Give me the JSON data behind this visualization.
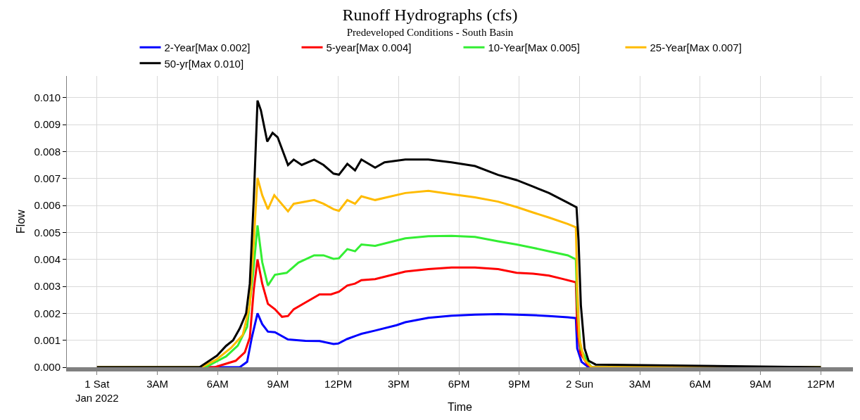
{
  "chart_data": {
    "type": "line",
    "title": "Runoff Hydrographs (cfs)",
    "subtitle": "Predeveloped Conditions - South Basin",
    "xlabel": "Time",
    "ylabel": "Flow",
    "xlim": [
      "2021-12-31T22:30",
      "2022-01-02T13:36"
    ],
    "ylim": [
      0,
      0.0108
    ],
    "xticks": [
      {
        "value": "2022-01-01T00:00",
        "label": "1 Sat\nJan 2022"
      },
      {
        "value": "2022-01-01T03:00",
        "label": "3AM"
      },
      {
        "value": "2022-01-01T06:00",
        "label": "6AM"
      },
      {
        "value": "2022-01-01T09:00",
        "label": "9AM"
      },
      {
        "value": "2022-01-01T12:00",
        "label": "12PM"
      },
      {
        "value": "2022-01-01T15:00",
        "label": "3PM"
      },
      {
        "value": "2022-01-01T18:00",
        "label": "6PM"
      },
      {
        "value": "2022-01-01T21:00",
        "label": "9PM"
      },
      {
        "value": "2022-01-02T00:00",
        "label": "2 Sun"
      },
      {
        "value": "2022-01-02T03:00",
        "label": "3AM"
      },
      {
        "value": "2022-01-02T06:00",
        "label": "6AM"
      },
      {
        "value": "2022-01-02T09:00",
        "label": "9AM"
      },
      {
        "value": "2022-01-02T12:00",
        "label": "12PM"
      }
    ],
    "yticks": [
      {
        "value": 0,
        "label": "0.000"
      },
      {
        "value": 0.001,
        "label": "0.001"
      },
      {
        "value": 0.002,
        "label": "0.002"
      },
      {
        "value": 0.003,
        "label": "0.003"
      },
      {
        "value": 0.004,
        "label": "0.004"
      },
      {
        "value": 0.005,
        "label": "0.005"
      },
      {
        "value": 0.006,
        "label": "0.006"
      },
      {
        "value": 0.007,
        "label": "0.007"
      },
      {
        "value": 0.008,
        "label": "0.008"
      },
      {
        "value": 0.009,
        "label": "0.009"
      },
      {
        "value": 0.01,
        "label": "0.010"
      }
    ],
    "grid": true,
    "legend": "top",
    "marker": "none",
    "line_style": "solid",
    "series": [
      {
        "name": "2-Year[Max 0.002]",
        "color": "#0000ff",
        "x": [
          "2022-01-01T00:00",
          "2022-01-01T07:06",
          "2022-01-01T07:28",
          "2022-01-01T07:42",
          "2022-01-01T07:59",
          "2022-01-01T08:13",
          "2022-01-01T08:30",
          "2022-01-01T08:51",
          "2022-01-01T09:30",
          "2022-01-01T10:22",
          "2022-01-01T11:04",
          "2022-01-01T11:46",
          "2022-01-01T12:00",
          "2022-01-01T12:27",
          "2022-01-01T13:09",
          "2022-01-01T13:50",
          "2022-01-01T14:54",
          "2022-01-01T15:20",
          "2022-01-01T16:29",
          "2022-01-01T17:38",
          "2022-01-01T18:48",
          "2022-01-01T19:57",
          "2022-01-01T20:52",
          "2022-01-01T21:41",
          "2022-01-01T22:29",
          "2022-01-01T23:25",
          "2022-01-01T23:49",
          "2022-01-01T23:53",
          "2022-01-02T00:06",
          "2022-01-02T00:27",
          "2022-01-02T12:00"
        ],
        "values": [
          0,
          0,
          0.0002,
          0.0011,
          0.002,
          0.0016,
          0.00132,
          0.0013,
          0.00103,
          0.00098,
          0.00097,
          0.00086,
          0.00088,
          0.00105,
          0.00124,
          0.00136,
          0.00156,
          0.00167,
          0.00183,
          0.00191,
          0.00195,
          0.00197,
          0.00195,
          0.00193,
          0.0019,
          0.00185,
          0.00182,
          0.0007,
          0.0002,
          0,
          0
        ]
      },
      {
        "name": "5-year[Max 0.004]",
        "color": "#ff0000",
        "x": [
          "2022-01-01T00:00",
          "2022-01-01T05:51",
          "2022-01-01T06:54",
          "2022-01-01T07:21",
          "2022-01-01T07:36",
          "2022-01-01T07:48",
          "2022-01-01T07:59",
          "2022-01-01T08:13",
          "2022-01-01T08:30",
          "2022-01-01T08:51",
          "2022-01-01T09:12",
          "2022-01-01T09:30",
          "2022-01-01T09:47",
          "2022-01-01T10:22",
          "2022-01-01T11:04",
          "2022-01-01T11:38",
          "2022-01-01T12:02",
          "2022-01-01T12:27",
          "2022-01-01T12:50",
          "2022-01-01T13:09",
          "2022-01-01T13:50",
          "2022-01-01T15:20",
          "2022-01-01T16:29",
          "2022-01-01T17:38",
          "2022-01-01T18:48",
          "2022-01-01T19:57",
          "2022-01-01T20:52",
          "2022-01-01T21:41",
          "2022-01-01T22:29",
          "2022-01-01T23:11",
          "2022-01-01T23:49",
          "2022-01-01T23:53",
          "2022-01-02T00:03",
          "2022-01-02T00:24",
          "2022-01-02T00:36",
          "2022-01-02T12:00"
        ],
        "values": [
          0,
          0,
          0.00024,
          0.00055,
          0.0011,
          0.0029,
          0.004,
          0.0031,
          0.00235,
          0.00215,
          0.00187,
          0.0019,
          0.00215,
          0.0024,
          0.0027,
          0.0027,
          0.0028,
          0.00303,
          0.0031,
          0.00323,
          0.00327,
          0.00355,
          0.00364,
          0.0037,
          0.0037,
          0.00364,
          0.0035,
          0.00347,
          0.0034,
          0.00327,
          0.00315,
          0.0015,
          0.0005,
          0.0001,
          0,
          0
        ]
      },
      {
        "name": "10-Year[Max 0.005]",
        "color": "#33ee33",
        "x": [
          "2022-01-01T00:00",
          "2022-01-01T05:24",
          "2022-01-01T06:25",
          "2022-01-01T07:00",
          "2022-01-01T07:28",
          "2022-01-01T07:46",
          "2022-01-01T07:59",
          "2022-01-01T08:13",
          "2022-01-01T08:30",
          "2022-01-01T08:51",
          "2022-01-01T09:26",
          "2022-01-01T10:01",
          "2022-01-01T10:48",
          "2022-01-01T11:16",
          "2022-01-01T11:46",
          "2022-01-01T12:02",
          "2022-01-01T12:27",
          "2022-01-01T12:50",
          "2022-01-01T13:09",
          "2022-01-01T13:50",
          "2022-01-01T15:20",
          "2022-01-01T16:29",
          "2022-01-01T17:38",
          "2022-01-01T18:48",
          "2022-01-01T19:57",
          "2022-01-01T20:52",
          "2022-01-01T21:41",
          "2022-01-01T22:29",
          "2022-01-01T23:25",
          "2022-01-01T23:49",
          "2022-01-01T23:53",
          "2022-01-02T00:03",
          "2022-01-02T00:24",
          "2022-01-02T00:36",
          "2022-01-02T12:00"
        ],
        "values": [
          0,
          0,
          0.0004,
          0.0008,
          0.0015,
          0.0035,
          0.00526,
          0.0039,
          0.00303,
          0.00343,
          0.0035,
          0.00388,
          0.00415,
          0.00415,
          0.00402,
          0.00404,
          0.00438,
          0.0043,
          0.00455,
          0.0045,
          0.00478,
          0.00486,
          0.00487,
          0.00483,
          0.00467,
          0.00455,
          0.00443,
          0.0043,
          0.00415,
          0.004,
          0.0023,
          0.0007,
          0.0002,
          0,
          0
        ]
      },
      {
        "name": "25-Year[Max 0.007]",
        "color": "#ffbb00",
        "x": [
          "2022-01-01T00:00",
          "2022-01-01T05:12",
          "2022-01-01T05:58",
          "2022-01-01T06:40",
          "2022-01-01T07:15",
          "2022-01-01T07:36",
          "2022-01-01T07:48",
          "2022-01-01T07:59",
          "2022-01-01T08:13",
          "2022-01-01T08:30",
          "2022-01-01T08:49",
          "2022-01-01T09:30",
          "2022-01-01T09:47",
          "2022-01-01T10:48",
          "2022-01-01T11:16",
          "2022-01-01T11:46",
          "2022-01-01T12:02",
          "2022-01-01T12:27",
          "2022-01-01T12:50",
          "2022-01-01T13:09",
          "2022-01-01T13:50",
          "2022-01-01T15:20",
          "2022-01-01T16:29",
          "2022-01-01T17:38",
          "2022-01-01T18:48",
          "2022-01-01T19:57",
          "2022-01-01T20:52",
          "2022-01-01T21:41",
          "2022-01-01T22:29",
          "2022-01-01T23:25",
          "2022-01-01T23:49",
          "2022-01-01T23:53",
          "2022-01-01T23:59",
          "2022-01-02T00:13",
          "2022-01-02T00:36",
          "2022-01-02T12:00"
        ],
        "values": [
          0,
          0,
          0.0003,
          0.00072,
          0.0012,
          0.0023,
          0.0047,
          0.00702,
          0.00638,
          0.00586,
          0.00638,
          0.00578,
          0.00606,
          0.0062,
          0.00606,
          0.00586,
          0.0058,
          0.0062,
          0.00606,
          0.00634,
          0.0062,
          0.00646,
          0.00654,
          0.00642,
          0.0063,
          0.00614,
          0.00594,
          0.00574,
          0.00555,
          0.00531,
          0.00519,
          0.0031,
          0.0011,
          0.0003,
          0,
          0
        ]
      },
      {
        "name": "50-yr[Max 0.010]",
        "color": "#000000",
        "x": [
          "2022-01-01T00:00",
          "2022-01-01T05:06",
          "2022-01-01T05:58",
          "2022-01-01T06:25",
          "2022-01-01T06:46",
          "2022-01-01T07:06",
          "2022-01-01T07:25",
          "2022-01-01T07:36",
          "2022-01-01T07:48",
          "2022-01-01T07:59",
          "2022-01-01T08:09",
          "2022-01-01T08:28",
          "2022-01-01T08:44",
          "2022-01-01T08:59",
          "2022-01-01T09:30",
          "2022-01-01T09:47",
          "2022-01-01T10:11",
          "2022-01-01T10:48",
          "2022-01-01T11:16",
          "2022-01-01T11:46",
          "2022-01-01T12:02",
          "2022-01-01T12:27",
          "2022-01-01T12:50",
          "2022-01-01T13:09",
          "2022-01-01T13:50",
          "2022-01-01T14:18",
          "2022-01-01T15:20",
          "2022-01-01T16:29",
          "2022-01-01T17:38",
          "2022-01-01T18:48",
          "2022-01-01T19:57",
          "2022-01-01T20:52",
          "2022-01-01T21:41",
          "2022-01-01T22:29",
          "2022-01-01T23:25",
          "2022-01-01T23:51",
          "2022-01-01T23:57",
          "2022-01-02T00:04",
          "2022-01-02T00:15",
          "2022-01-02T00:27",
          "2022-01-02T00:48",
          "2022-01-02T12:00"
        ],
        "values": [
          0,
          0,
          0.00043,
          0.00079,
          0.001,
          0.00144,
          0.002,
          0.0031,
          0.0063,
          0.00989,
          0.00953,
          0.00837,
          0.00869,
          0.00853,
          0.0075,
          0.0077,
          0.0075,
          0.0077,
          0.0075,
          0.00718,
          0.00714,
          0.00754,
          0.0073,
          0.0077,
          0.0074,
          0.0076,
          0.0077,
          0.0077,
          0.0076,
          0.00746,
          0.00713,
          0.00694,
          0.0067,
          0.00646,
          0.0061,
          0.00593,
          0.0047,
          0.0023,
          0.0007,
          0.00024,
          0.0001,
          0
        ]
      }
    ]
  }
}
